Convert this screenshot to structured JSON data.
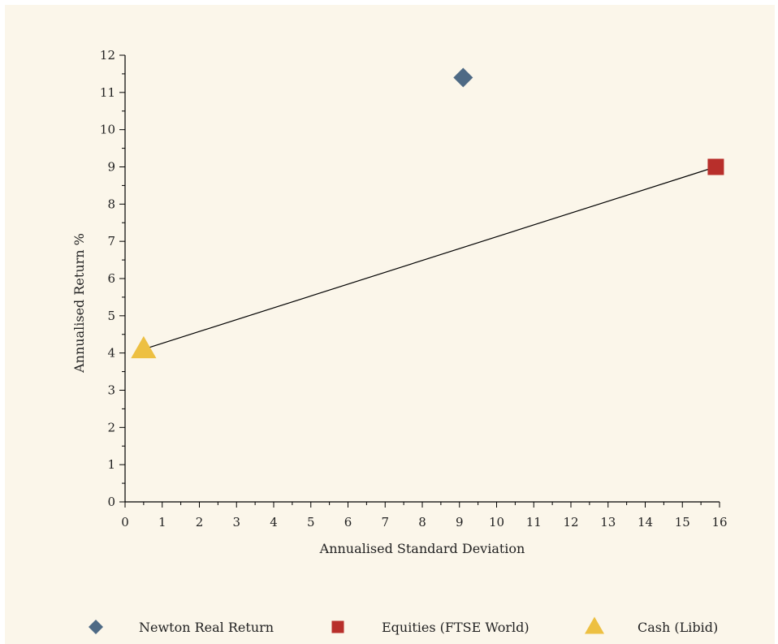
{
  "chart_data": {
    "type": "scatter",
    "xlabel": "Annualised Standard Deviation",
    "ylabel": "Annualised Return %",
    "xlim": [
      0,
      16
    ],
    "ylim": [
      0,
      12
    ],
    "xticks": [
      0,
      1,
      2,
      3,
      4,
      5,
      6,
      7,
      8,
      9,
      10,
      11,
      12,
      13,
      14,
      15,
      16
    ],
    "yticks": [
      0,
      1,
      2,
      3,
      4,
      5,
      6,
      7,
      8,
      9,
      10,
      11,
      12
    ],
    "grid": false,
    "legend_position": "bottom",
    "series": [
      {
        "name": "Newton Real Return",
        "marker": "diamond",
        "color": "#4e6a85",
        "x": 9.1,
        "y": 11.4
      },
      {
        "name": "Equities (FTSE World)",
        "marker": "square",
        "color": "#b82f2b",
        "x": 15.9,
        "y": 9.0
      },
      {
        "name": "Cash (Libid)",
        "marker": "triangle",
        "color": "#edc042",
        "x": 0.5,
        "y": 4.1
      }
    ],
    "lines": [
      {
        "from_series": "Cash (Libid)",
        "to_series": "Equities (FTSE World)",
        "color": "#000000"
      }
    ]
  }
}
